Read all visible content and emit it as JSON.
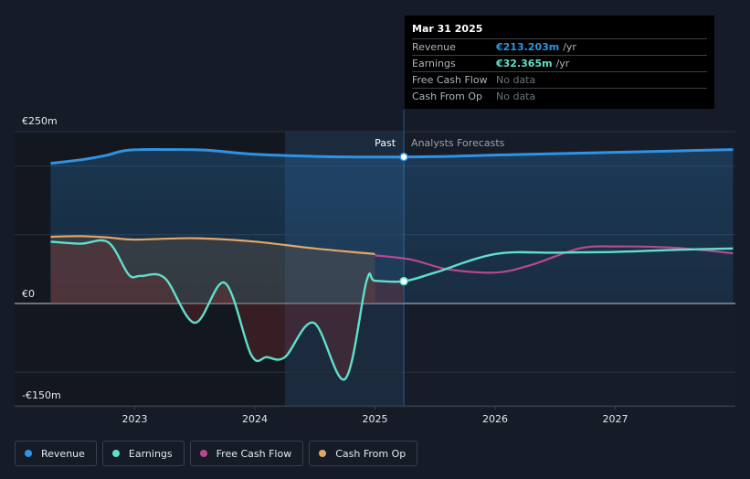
{
  "chart_data": {
    "type": "line",
    "x_ticks": [
      "2023",
      "2024",
      "2025",
      "2026",
      "2027"
    ],
    "y_tick_labels": [
      "€250m",
      "€0",
      "-€150m"
    ],
    "ylim": [
      -150,
      250
    ],
    "divider_labels": {
      "past": "Past",
      "forecast": "Analysts Forecasts"
    },
    "series": [
      {
        "name": "Revenue",
        "color": "#2e93e4",
        "points": [
          [
            2022.3,
            204
          ],
          [
            2022.55,
            209
          ],
          [
            2022.75,
            215
          ],
          [
            2022.95,
            223
          ],
          [
            2023.3,
            224
          ],
          [
            2023.6,
            223
          ],
          [
            2024.0,
            217
          ],
          [
            2024.5,
            214
          ],
          [
            2024.9,
            213
          ],
          [
            2025.24,
            213.203
          ],
          [
            2025.6,
            214
          ],
          [
            2026.0,
            216
          ],
          [
            2026.5,
            218
          ],
          [
            2027.0,
            220
          ],
          [
            2027.5,
            222
          ],
          [
            2027.98,
            224
          ]
        ]
      },
      {
        "name": "Earnings",
        "color": "#5fe0c8",
        "points": [
          [
            2022.3,
            90
          ],
          [
            2022.55,
            87
          ],
          [
            2022.78,
            89
          ],
          [
            2022.95,
            42
          ],
          [
            2023.05,
            40
          ],
          [
            2023.25,
            37
          ],
          [
            2023.5,
            -28
          ],
          [
            2023.75,
            30
          ],
          [
            2023.97,
            -75
          ],
          [
            2024.1,
            -78
          ],
          [
            2024.25,
            -78
          ],
          [
            2024.49,
            -28
          ],
          [
            2024.75,
            -110
          ],
          [
            2024.93,
            33
          ],
          [
            2025.0,
            33
          ],
          [
            2025.24,
            32.365
          ],
          [
            2025.5,
            45
          ],
          [
            2026.0,
            72
          ],
          [
            2026.5,
            74
          ],
          [
            2027.0,
            75
          ],
          [
            2027.5,
            78
          ],
          [
            2027.98,
            80
          ]
        ]
      },
      {
        "name": "Free Cash Flow",
        "color": "#b8488e",
        "points": [
          [
            2025.0,
            70
          ],
          [
            2025.3,
            64
          ],
          [
            2025.6,
            50
          ],
          [
            2026.0,
            45
          ],
          [
            2026.3,
            56
          ],
          [
            2026.7,
            80
          ],
          [
            2027.0,
            83
          ],
          [
            2027.5,
            81
          ],
          [
            2027.98,
            73
          ]
        ]
      },
      {
        "name": "Cash From Op",
        "color": "#e6a568",
        "points": [
          [
            2022.3,
            97
          ],
          [
            2022.55,
            98
          ],
          [
            2022.78,
            96
          ],
          [
            2023.0,
            93
          ],
          [
            2023.5,
            95
          ],
          [
            2024.0,
            90
          ],
          [
            2024.5,
            80
          ],
          [
            2025.0,
            72
          ]
        ]
      }
    ],
    "tooltip_point": {
      "series": "Revenue",
      "x": 2025.24,
      "y": 213.203
    },
    "earnings_marker": {
      "x": 2025.24,
      "y": 32.365
    }
  },
  "tooltip": {
    "date": "Mar 31 2025",
    "rows": [
      {
        "name": "Revenue",
        "value": "€213.203m",
        "unit": "/yr",
        "color": "#2e93e4"
      },
      {
        "name": "Earnings",
        "value": "€32.365m",
        "unit": "/yr",
        "color": "#5fe0c8"
      },
      {
        "name": "Free Cash Flow",
        "value": "No data",
        "unit": "",
        "color": "#6d737b"
      },
      {
        "name": "Cash From Op",
        "value": "No data",
        "unit": "",
        "color": "#6d737b"
      }
    ]
  },
  "legend": [
    {
      "label": "Revenue",
      "color": "#2e93e4"
    },
    {
      "label": "Earnings",
      "color": "#5fe0c8"
    },
    {
      "label": "Free Cash Flow",
      "color": "#b8488e"
    },
    {
      "label": "Cash From Op",
      "color": "#e6a568"
    }
  ]
}
